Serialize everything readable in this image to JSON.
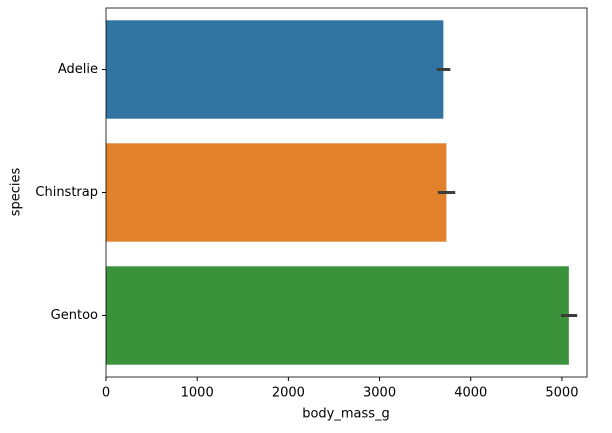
{
  "chart_data": {
    "type": "barh",
    "categories": [
      "Adelie",
      "Chinstrap",
      "Gentoo"
    ],
    "values": [
      3700,
      3733,
      5076
    ],
    "ci": [
      [
        3627,
        3776
      ],
      [
        3640,
        3830
      ],
      [
        4990,
        5168
      ]
    ],
    "colors": [
      "#3274a1",
      "#e1812c",
      "#3a923a"
    ],
    "xlabel": "body_mass_g",
    "ylabel": "species",
    "xlim": [
      0,
      5275
    ],
    "xticks": [
      0,
      1000,
      2000,
      3000,
      4000,
      5000
    ],
    "grid": false
  }
}
